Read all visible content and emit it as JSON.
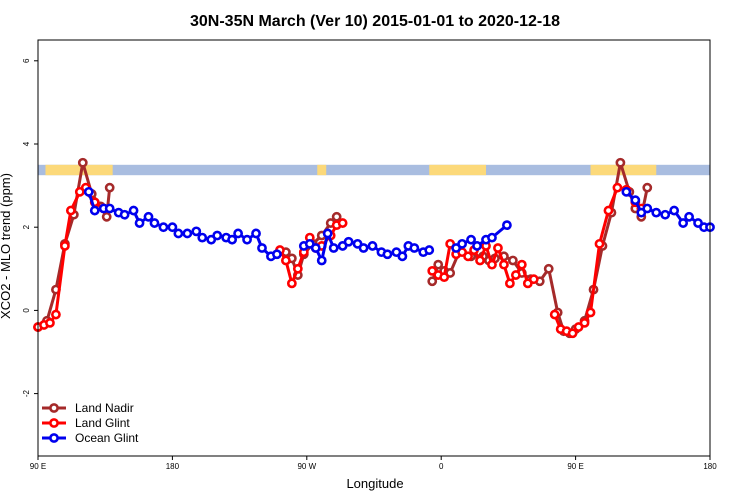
{
  "chart_data": {
    "type": "line",
    "title": "30N-35N March (Ver 10)   2015-01-01 to 2020-12-18",
    "xlabel": "Longitude",
    "ylabel": "XCO2 - MLO trend (ppm)",
    "xlim": [
      0,
      450
    ],
    "ylim": [
      -3.5,
      6.5
    ],
    "xticks": [
      {
        "value": 0,
        "label": "90 E"
      },
      {
        "value": 90,
        "label": "180"
      },
      {
        "value": 180,
        "label": "90 W"
      },
      {
        "value": 270,
        "label": "0"
      },
      {
        "value": 360,
        "label": "90 E"
      },
      {
        "value": 450,
        "label": "180"
      }
    ],
    "yticks": [
      {
        "value": -2,
        "label": "-2"
      },
      {
        "value": 0,
        "label": "0"
      },
      {
        "value": 2,
        "label": "2"
      },
      {
        "value": 4,
        "label": "4"
      },
      {
        "value": 6,
        "label": "6"
      }
    ],
    "land_band": {
      "ymin": 3.25,
      "ymax": 3.5,
      "ocean_color": "#a9bde0",
      "land_color": "#fcd97a",
      "land_segments": [
        [
          5,
          50
        ],
        [
          187,
          193
        ],
        [
          262,
          300
        ],
        [
          370,
          414
        ]
      ]
    },
    "legend_position": "bottom-left",
    "series": [
      {
        "name": "Land Nadir",
        "color": "#a52a2a",
        "points": [
          [
            0,
            -0.4
          ],
          [
            6,
            -0.25
          ],
          [
            12,
            0.5
          ],
          [
            18,
            1.6
          ],
          [
            24,
            2.3
          ],
          [
            30,
            3.55
          ],
          [
            36,
            2.8
          ],
          [
            42,
            2.5
          ],
          [
            46,
            2.25
          ],
          [
            48,
            2.95
          ],
          [
            166,
            1.4
          ],
          [
            170,
            1.25
          ],
          [
            174,
            0.85
          ],
          [
            178,
            1.35
          ],
          [
            184,
            1.6
          ],
          [
            190,
            1.8
          ],
          [
            196,
            2.1
          ],
          [
            200,
            2.25
          ],
          [
            264,
            0.7
          ],
          [
            268,
            1.1
          ],
          [
            272,
            0.95
          ],
          [
            276,
            0.9
          ],
          [
            282,
            1.4
          ],
          [
            290,
            1.3
          ],
          [
            298,
            1.3
          ],
          [
            302,
            1.2
          ],
          [
            306,
            1.25
          ],
          [
            312,
            1.3
          ],
          [
            318,
            1.2
          ],
          [
            324,
            0.9
          ],
          [
            330,
            0.75
          ],
          [
            336,
            0.7
          ],
          [
            342,
            1.0
          ],
          [
            348,
            -0.05
          ],
          [
            352,
            -0.5
          ],
          [
            356,
            -0.55
          ],
          [
            360,
            -0.45
          ],
          [
            366,
            -0.25
          ],
          [
            372,
            0.5
          ],
          [
            378,
            1.55
          ],
          [
            384,
            2.35
          ],
          [
            390,
            3.55
          ],
          [
            396,
            2.85
          ],
          [
            400,
            2.45
          ],
          [
            404,
            2.25
          ],
          [
            408,
            2.95
          ]
        ]
      },
      {
        "name": "Land Glint",
        "color": "#ff0000",
        "points": [
          [
            0,
            -0.4
          ],
          [
            4,
            -0.35
          ],
          [
            8,
            -0.3
          ],
          [
            12,
            -0.1
          ],
          [
            18,
            1.55
          ],
          [
            22,
            2.4
          ],
          [
            28,
            2.85
          ],
          [
            32,
            2.95
          ],
          [
            38,
            2.6
          ],
          [
            44,
            2.45
          ],
          [
            162,
            1.45
          ],
          [
            166,
            1.2
          ],
          [
            170,
            0.65
          ],
          [
            174,
            1.0
          ],
          [
            178,
            1.4
          ],
          [
            182,
            1.75
          ],
          [
            186,
            1.5
          ],
          [
            190,
            1.55
          ],
          [
            196,
            1.8
          ],
          [
            200,
            2.05
          ],
          [
            204,
            2.1
          ],
          [
            264,
            0.95
          ],
          [
            268,
            0.85
          ],
          [
            272,
            0.8
          ],
          [
            276,
            1.6
          ],
          [
            280,
            1.35
          ],
          [
            284,
            1.4
          ],
          [
            288,
            1.3
          ],
          [
            292,
            1.45
          ],
          [
            296,
            1.2
          ],
          [
            300,
            1.55
          ],
          [
            304,
            1.1
          ],
          [
            308,
            1.5
          ],
          [
            312,
            1.1
          ],
          [
            316,
            0.65
          ],
          [
            320,
            0.85
          ],
          [
            324,
            1.1
          ],
          [
            328,
            0.65
          ],
          [
            332,
            0.75
          ],
          [
            346,
            -0.1
          ],
          [
            350,
            -0.45
          ],
          [
            354,
            -0.5
          ],
          [
            358,
            -0.55
          ],
          [
            362,
            -0.4
          ],
          [
            366,
            -0.3
          ],
          [
            370,
            -0.05
          ],
          [
            376,
            1.6
          ],
          [
            382,
            2.4
          ],
          [
            388,
            2.95
          ],
          [
            394,
            2.9
          ],
          [
            400,
            2.6
          ],
          [
            404,
            2.45
          ]
        ]
      },
      {
        "name": "Ocean Glint",
        "color": "#0000ee",
        "points": [
          [
            34,
            2.85
          ],
          [
            38,
            2.4
          ],
          [
            44,
            2.45
          ],
          [
            48,
            2.45
          ],
          [
            54,
            2.35
          ],
          [
            58,
            2.3
          ],
          [
            64,
            2.4
          ],
          [
            68,
            2.1
          ],
          [
            74,
            2.25
          ],
          [
            78,
            2.1
          ],
          [
            84,
            2.0
          ],
          [
            90,
            2.0
          ],
          [
            94,
            1.85
          ],
          [
            100,
            1.85
          ],
          [
            106,
            1.9
          ],
          [
            110,
            1.75
          ],
          [
            116,
            1.7
          ],
          [
            120,
            1.8
          ],
          [
            126,
            1.75
          ],
          [
            130,
            1.7
          ],
          [
            134,
            1.85
          ],
          [
            140,
            1.7
          ],
          [
            146,
            1.85
          ],
          [
            150,
            1.5
          ],
          [
            156,
            1.3
          ],
          [
            160,
            1.35
          ],
          [
            178,
            1.55
          ],
          [
            182,
            1.6
          ],
          [
            186,
            1.5
          ],
          [
            190,
            1.2
          ],
          [
            194,
            1.85
          ],
          [
            198,
            1.5
          ],
          [
            204,
            1.55
          ],
          [
            208,
            1.65
          ],
          [
            214,
            1.6
          ],
          [
            218,
            1.5
          ],
          [
            224,
            1.55
          ],
          [
            230,
            1.4
          ],
          [
            234,
            1.35
          ],
          [
            240,
            1.4
          ],
          [
            244,
            1.3
          ],
          [
            248,
            1.55
          ],
          [
            252,
            1.5
          ],
          [
            258,
            1.4
          ],
          [
            262,
            1.45
          ],
          [
            280,
            1.5
          ],
          [
            284,
            1.6
          ],
          [
            290,
            1.7
          ],
          [
            294,
            1.55
          ],
          [
            300,
            1.7
          ],
          [
            304,
            1.75
          ],
          [
            314,
            2.05
          ],
          [
            394,
            2.85
          ],
          [
            400,
            2.65
          ],
          [
            404,
            2.35
          ],
          [
            408,
            2.45
          ],
          [
            414,
            2.35
          ],
          [
            420,
            2.3
          ],
          [
            426,
            2.4
          ],
          [
            432,
            2.1
          ],
          [
            436,
            2.25
          ],
          [
            442,
            2.1
          ],
          [
            446,
            2.0
          ],
          [
            450,
            2.0
          ]
        ]
      }
    ]
  }
}
